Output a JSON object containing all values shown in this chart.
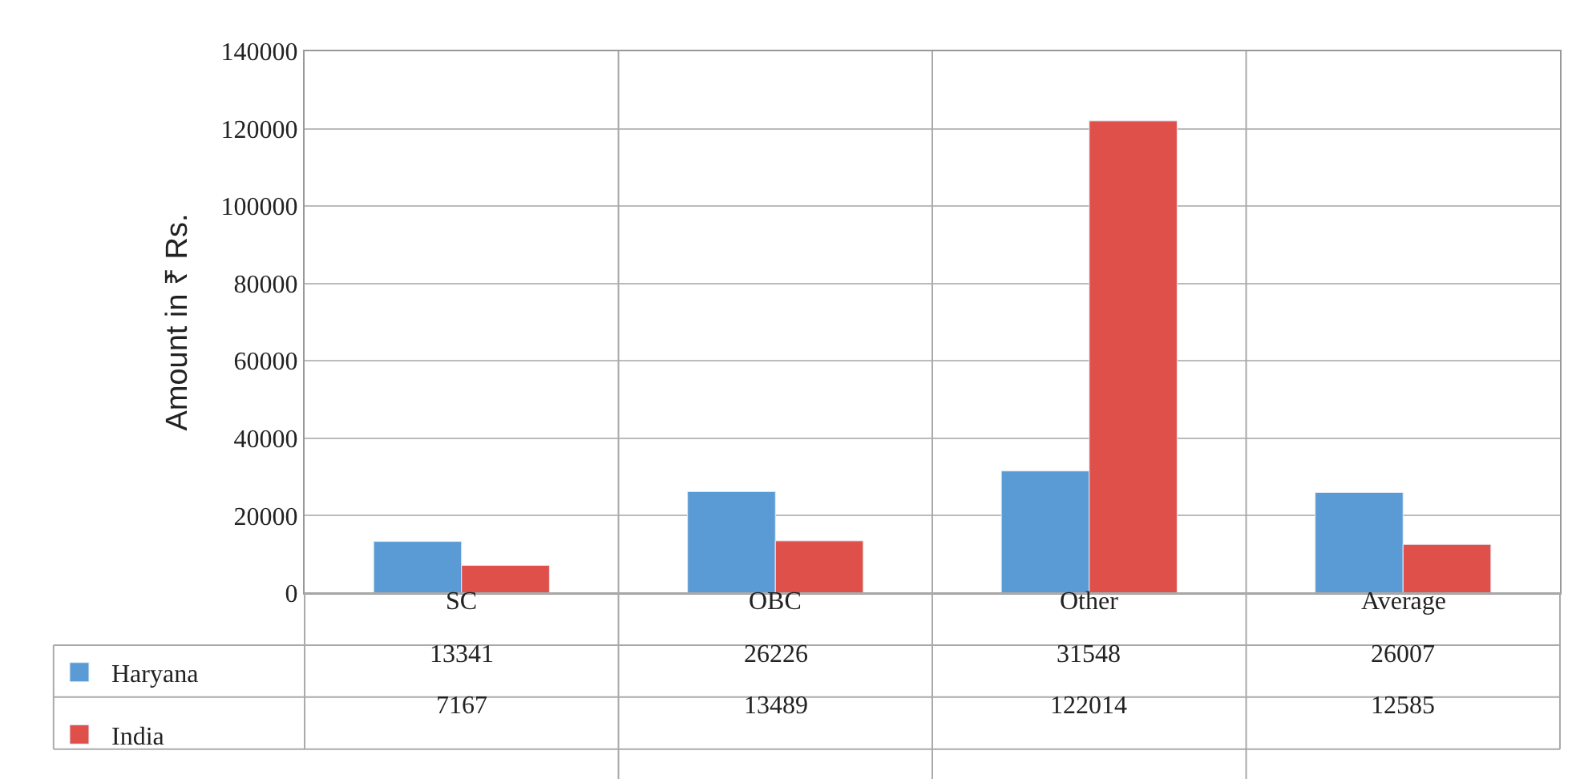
{
  "chart_data": {
    "type": "bar",
    "ylabel": "Amount in ₹ Rs.",
    "categories": [
      "SC",
      "OBC",
      "Other",
      "Average"
    ],
    "series": [
      {
        "name": "Haryana",
        "color": "#5b9bd5",
        "values": [
          13341,
          26226,
          31548,
          26007
        ]
      },
      {
        "name": "India",
        "color": "#e0504a",
        "values": [
          7167,
          13489,
          122014,
          12585
        ]
      }
    ],
    "ylim": [
      0,
      140000
    ],
    "yticks": [
      0,
      20000,
      40000,
      60000,
      80000,
      100000,
      120000,
      140000
    ],
    "grid": "y",
    "legend": "bottom",
    "data_labels": true
  }
}
